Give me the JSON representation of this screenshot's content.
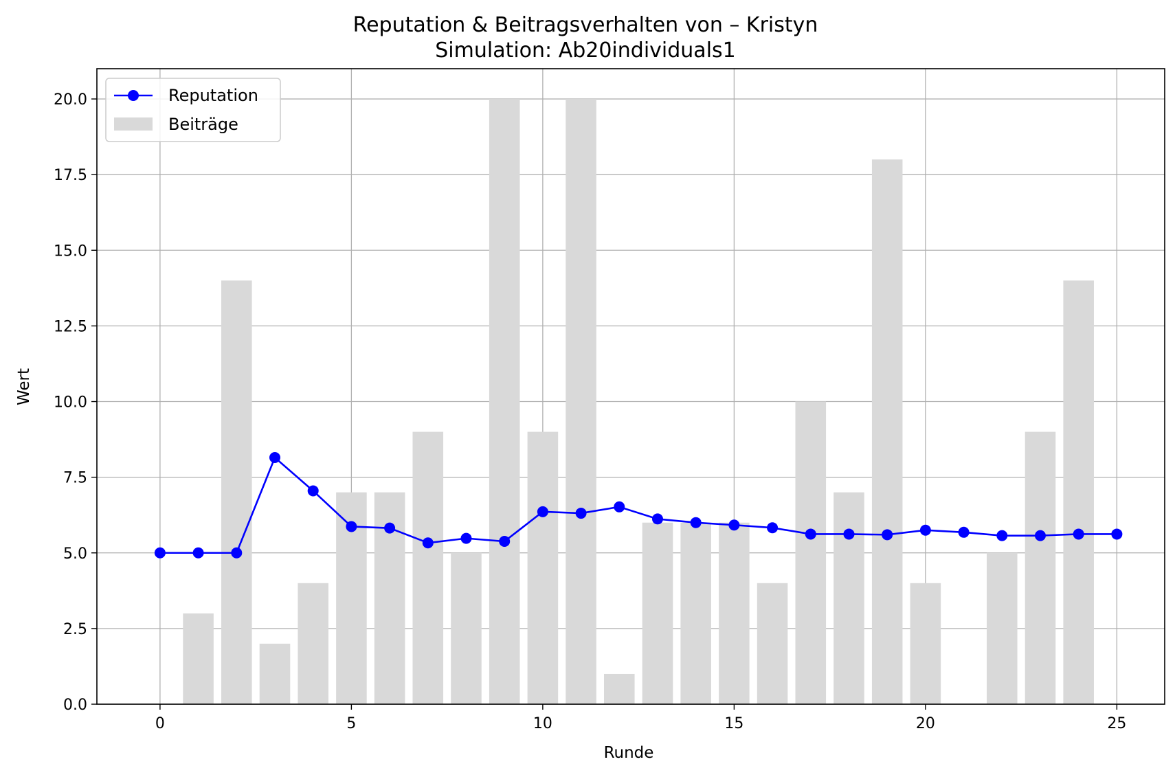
{
  "chart_data": {
    "type": "bar+line",
    "title": "Reputation & Beitragsverhalten von – Kristyn",
    "subtitle": "Simulation: Ab20individuals1",
    "xlabel": "Runde",
    "ylabel": "Wert",
    "xlim": [
      -1.65,
      26.25
    ],
    "ylim": [
      0,
      21
    ],
    "xticks": [
      0,
      5,
      10,
      15,
      20,
      25
    ],
    "yticks": [
      0.0,
      2.5,
      5.0,
      7.5,
      10.0,
      12.5,
      15.0,
      17.5,
      20.0
    ],
    "xtick_labels": [
      "0",
      "5",
      "10",
      "15",
      "20",
      "25"
    ],
    "ytick_labels": [
      "0.0",
      "2.5",
      "5.0",
      "7.5",
      "10.0",
      "12.5",
      "15.0",
      "17.5",
      "20.0"
    ],
    "grid": true,
    "legend": {
      "placement": "top-left",
      "entries": [
        "Reputation",
        "Beiträge"
      ]
    },
    "series": [
      {
        "name": "Beiträge",
        "type": "bar",
        "color": "#d9d9d9",
        "x": [
          1,
          2,
          3,
          4,
          5,
          6,
          7,
          8,
          9,
          10,
          11,
          12,
          13,
          14,
          15,
          16,
          17,
          18,
          19,
          20,
          21,
          22,
          23,
          24
        ],
        "values": [
          3,
          14,
          2,
          4,
          7,
          7,
          9,
          5,
          20,
          9,
          20,
          1,
          6,
          6,
          6,
          4,
          10,
          7,
          18,
          4,
          0,
          5,
          9,
          14
        ]
      },
      {
        "name": "Reputation",
        "type": "line",
        "color": "#0000ff",
        "x": [
          0,
          1,
          2,
          3,
          4,
          5,
          6,
          7,
          8,
          9,
          10,
          11,
          12,
          13,
          14,
          15,
          16,
          17,
          18,
          19,
          20,
          21,
          22,
          23,
          24,
          25
        ],
        "values": [
          5.0,
          5.0,
          5.0,
          8.15,
          7.05,
          5.87,
          5.82,
          5.33,
          5.48,
          5.38,
          6.36,
          6.31,
          6.52,
          6.12,
          6.0,
          5.92,
          5.83,
          5.62,
          5.62,
          5.6,
          5.75,
          5.68,
          5.57,
          5.57,
          5.62,
          5.62
        ]
      }
    ]
  }
}
